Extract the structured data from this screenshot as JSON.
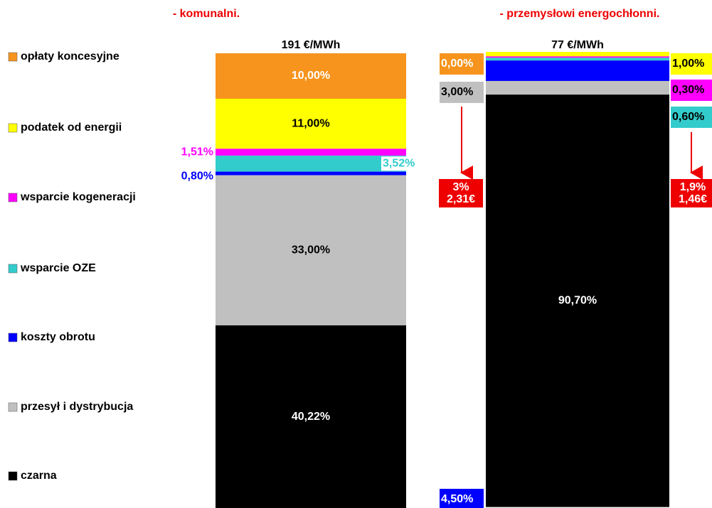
{
  "chart_data": {
    "type": "bar",
    "stacked": true,
    "categories": [
      "- komunalni.",
      "- przemysłowi energochłonni."
    ],
    "totals": [
      "191 €/MWh",
      "77 €/MWh"
    ],
    "series": [
      {
        "name": "opłaty koncesyjne",
        "color": "#f7941d",
        "values": [
          10,
          0
        ],
        "value_labels": [
          "10,00%",
          "0,00%"
        ]
      },
      {
        "name": "podatek od energii",
        "color": "#ffff00",
        "values": [
          11,
          1
        ],
        "value_labels": [
          "11,00%",
          "1,00%"
        ]
      },
      {
        "name": "wsparcie kogeneracji",
        "color": "#ff00ff",
        "values": [
          1.51,
          0.3
        ],
        "value_labels": [
          "1,51%",
          "0,30%"
        ]
      },
      {
        "name": "wsparcie OZE",
        "color": "#33cccc",
        "values": [
          3.52,
          0.6
        ],
        "value_labels": [
          "3,52%",
          "0,60%"
        ]
      },
      {
        "name": "koszty obrotu",
        "color": "#0000ff",
        "values": [
          0.8,
          4.5
        ],
        "value_labels": [
          "0,80%",
          "4,50%"
        ]
      },
      {
        "name": "przesył i dystrybucja",
        "color": "#c0c0c0",
        "values": [
          33,
          3
        ],
        "value_labels": [
          "33,00%",
          "3,00%"
        ]
      },
      {
        "name": "czarna",
        "color": "#000000",
        "values": [
          40.22,
          90.7
        ],
        "value_labels": [
          "40,22%",
          "90,70%"
        ]
      }
    ],
    "annotations": [
      {
        "lines": [
          "3%",
          "2,31€"
        ]
      },
      {
        "lines": [
          "1,9%",
          "1,46€"
        ]
      }
    ]
  }
}
